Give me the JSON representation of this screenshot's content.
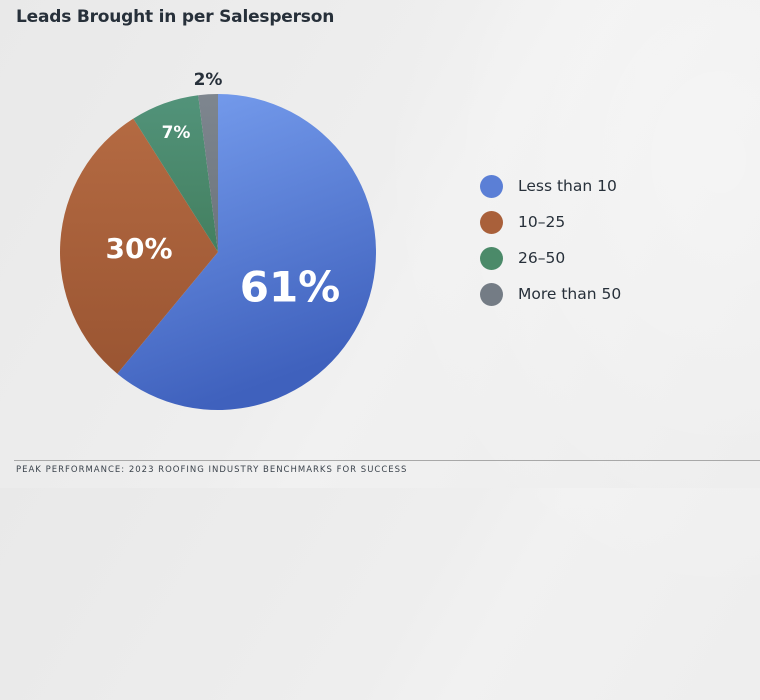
{
  "chart_data": {
    "type": "pie",
    "title": "Leads Brought in per Salesperson",
    "categories": [
      "Less than 10",
      "10–25",
      "26–50",
      "More than 50"
    ],
    "values": [
      61,
      30,
      7,
      2
    ],
    "unit": "%",
    "data_labels": [
      "61%",
      "30%",
      "7%",
      "2%"
    ],
    "colors": [
      "#5b7fd6",
      "#a9603a",
      "#4b8a69",
      "#747c85"
    ],
    "start_angle": "top",
    "direction": "clockwise",
    "legend": {
      "position": "right",
      "entries": [
        "Less than 10",
        "10–25",
        "26–50",
        "More than 50"
      ]
    }
  },
  "footer": {
    "text": "PEAK PERFORMANCE: 2023 ROOFING INDUSTRY BENCHMARKS FOR SUCCESS"
  }
}
